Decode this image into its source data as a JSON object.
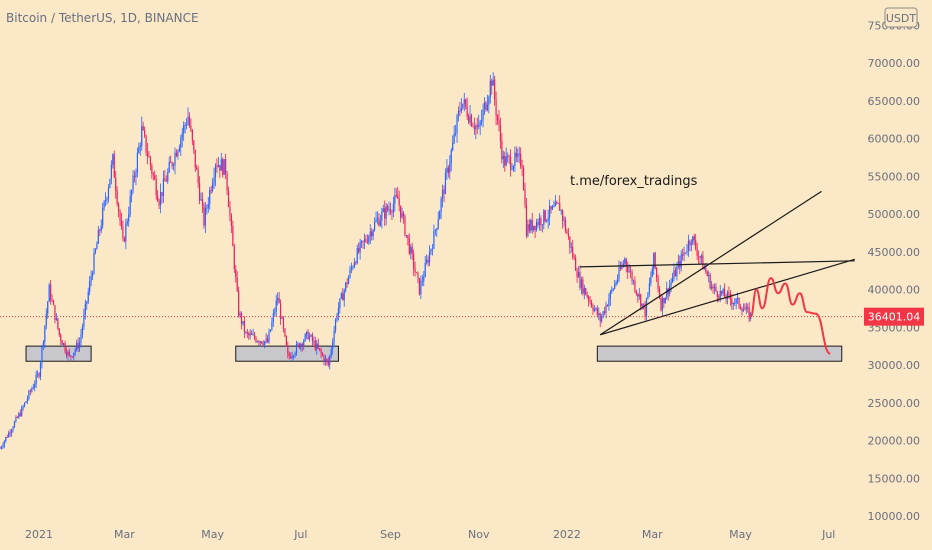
{
  "header": {
    "symbol_line": "Bitcoin / TetherUS, 1D, BINANCE"
  },
  "currency_badge": "USDT",
  "watermark": "t.me/forex_tradings",
  "price_tag": {
    "value": "36401.04",
    "price": 36401.04,
    "color": "#f23645"
  },
  "colors": {
    "up": "#2962ff",
    "down": "#e91e63",
    "forecast": "#f23645",
    "background": "#fbe8c6",
    "zone": "#c8c8cc"
  },
  "chart_data": {
    "type": "candlestick",
    "title": "",
    "xlabel": "",
    "ylabel": "",
    "ylim": [
      10000,
      75000
    ],
    "y_ticks": [
      "75000.00",
      "70000.00",
      "65000.00",
      "60000.00",
      "55000.00",
      "50000.00",
      "45000.00",
      "40000.00",
      "35000.00",
      "30000.00",
      "25000.00",
      "20000.00",
      "15000.00",
      "10000.00"
    ],
    "x_ticks": [
      {
        "label": "2021",
        "date": "2021-01-01"
      },
      {
        "label": "Mar",
        "date": "2021-03-01"
      },
      {
        "label": "May",
        "date": "2021-05-01"
      },
      {
        "label": "Jul",
        "date": "2021-07-01"
      },
      {
        "label": "Sep",
        "date": "2021-09-01"
      },
      {
        "label": "Nov",
        "date": "2021-11-01"
      },
      {
        "label": "2022",
        "date": "2022-01-01"
      },
      {
        "label": "Mar",
        "date": "2022-03-01"
      },
      {
        "label": "May",
        "date": "2022-05-01"
      },
      {
        "label": "Jul",
        "date": "2022-07-01"
      }
    ],
    "x_range": [
      "2020-12-05",
      "2022-07-24"
    ],
    "price_path": [
      [
        "2020-12-05",
        19000
      ],
      [
        "2020-12-20",
        24000
      ],
      [
        "2021-01-01",
        29000
      ],
      [
        "2021-01-08",
        40000
      ],
      [
        "2021-01-15",
        34000
      ],
      [
        "2021-01-22",
        31000
      ],
      [
        "2021-01-29",
        33000
      ],
      [
        "2021-02-08",
        44000
      ],
      [
        "2021-02-21",
        57000
      ],
      [
        "2021-02-28",
        46000
      ],
      [
        "2021-03-13",
        61000
      ],
      [
        "2021-03-25",
        52000
      ],
      [
        "2021-04-14",
        63000
      ],
      [
        "2021-04-25",
        49000
      ],
      [
        "2021-05-03",
        57000
      ],
      [
        "2021-05-10",
        56000
      ],
      [
        "2021-05-19",
        37000
      ],
      [
        "2021-05-24",
        34000
      ],
      [
        "2021-06-08",
        33000
      ],
      [
        "2021-06-15",
        39000
      ],
      [
        "2021-06-22",
        31000
      ],
      [
        "2021-07-06",
        34000
      ],
      [
        "2021-07-20",
        30000
      ],
      [
        "2021-07-26",
        37000
      ],
      [
        "2021-08-07",
        44000
      ],
      [
        "2021-08-22",
        49000
      ],
      [
        "2021-09-06",
        52000
      ],
      [
        "2021-09-21",
        40000
      ],
      [
        "2021-10-01",
        47000
      ],
      [
        "2021-10-15",
        60000
      ],
      [
        "2021-10-20",
        65000
      ],
      [
        "2021-11-01",
        61000
      ],
      [
        "2021-11-10",
        68000
      ],
      [
        "2021-11-18",
        57000
      ],
      [
        "2021-12-01",
        57000
      ],
      [
        "2021-12-04",
        48000
      ],
      [
        "2021-12-27",
        51000
      ],
      [
        "2022-01-10",
        41000
      ],
      [
        "2022-01-24",
        36000
      ],
      [
        "2022-02-10",
        44000
      ],
      [
        "2022-02-24",
        37000
      ],
      [
        "2022-03-02",
        44000
      ],
      [
        "2022-03-07",
        38000
      ],
      [
        "2022-03-28",
        47000
      ],
      [
        "2022-04-12",
        40000
      ],
      [
        "2022-05-01",
        38000
      ],
      [
        "2022-05-08",
        36400
      ]
    ],
    "forecast_path": [
      [
        "2022-05-08",
        36400
      ],
      [
        "2022-05-12",
        40000
      ],
      [
        "2022-05-16",
        37500
      ],
      [
        "2022-05-22",
        41500
      ],
      [
        "2022-05-27",
        39500
      ],
      [
        "2022-06-01",
        40800
      ],
      [
        "2022-06-06",
        38000
      ],
      [
        "2022-06-11",
        39500
      ],
      [
        "2022-06-16",
        37000
      ],
      [
        "2022-06-22",
        36800
      ],
      [
        "2022-07-02",
        31500
      ]
    ],
    "support_zones": [
      {
        "from": "2020-12-23",
        "to": "2021-02-06",
        "low": 30500,
        "high": 32500
      },
      {
        "from": "2021-05-17",
        "to": "2021-07-27",
        "low": 30500,
        "high": 32500
      },
      {
        "from": "2022-01-22",
        "to": "2022-07-10",
        "low": 30500,
        "high": 32500
      }
    ],
    "channel_lines": [
      {
        "from": [
          "2022-01-24",
          34000
        ],
        "to": [
          "2022-06-26",
          53000
        ]
      },
      {
        "from": [
          "2022-01-10",
          43000
        ],
        "to": [
          "2022-07-19",
          43800
        ]
      },
      {
        "from": [
          "2022-01-24",
          34000
        ],
        "to": [
          "2022-07-19",
          44000
        ]
      }
    ]
  }
}
